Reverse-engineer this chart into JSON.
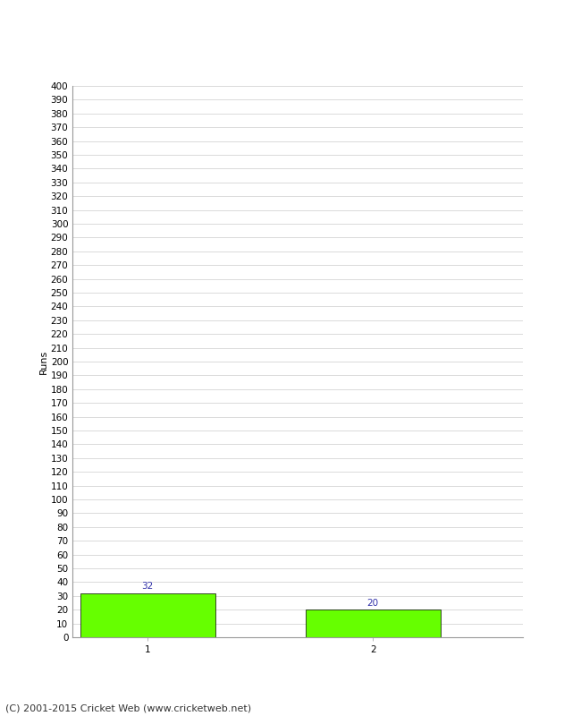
{
  "categories": [
    "1",
    "2"
  ],
  "values": [
    32,
    20
  ],
  "bar_color": "#66ff00",
  "bar_edge_color": "#000000",
  "ylabel": "Runs",
  "ylim": [
    0,
    400
  ],
  "ytick_step": 10,
  "background_color": "#ffffff",
  "grid_color": "#cccccc",
  "value_label_color": "#3333aa",
  "value_label_fontsize": 7.5,
  "axis_label_fontsize": 8,
  "tick_fontsize": 7.5,
  "footer_text": "(C) 2001-2015 Cricket Web (www.cricketweb.net)",
  "footer_fontsize": 8,
  "footer_color": "#333333",
  "xlim": [
    0,
    3
  ],
  "bar_positions": [
    0.5,
    2.0
  ],
  "bar_width": 0.9
}
